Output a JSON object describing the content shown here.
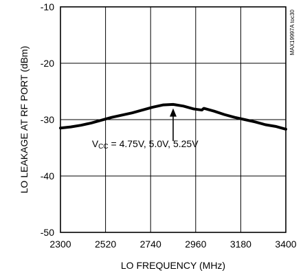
{
  "chart_data": {
    "type": "line",
    "xlabel": "LO FREQUENCY (MHz)",
    "ylabel": "LO LEAKAGE AT RF PORT (dBm)",
    "xlim": [
      2300,
      3400
    ],
    "ylim": [
      -50,
      -10
    ],
    "xticks": [
      2300,
      2520,
      2740,
      2960,
      3180,
      3400
    ],
    "yticks": [
      -10,
      -20,
      -30,
      -40,
      -50
    ],
    "xtick_labels": [
      "2300",
      "2520",
      "2740",
      "2960",
      "3180",
      "3400"
    ],
    "ytick_labels": [
      "-10",
      "-20",
      "-30",
      "-40",
      "-50"
    ],
    "grid": true,
    "chart_id": "MAX19997A toc30",
    "annotation": {
      "prefix": "V",
      "subscript": "CC",
      "suffix": " = 4.75V, 5.0V, 5.25V",
      "arrow_from": [
        2850,
        -33.8
      ],
      "arrow_to": [
        2850,
        -28.0
      ],
      "text_at": [
        2740,
        -34.9
      ]
    },
    "series": [
      {
        "x": [
          2300,
          2350,
          2400,
          2450,
          2500,
          2550,
          2600,
          2650,
          2700,
          2750,
          2800,
          2850,
          2900,
          2950,
          2990,
          3000,
          3050,
          3100,
          3150,
          3200,
          3250,
          3300,
          3350,
          3400
        ],
        "y": [
          -31.5,
          -31.3,
          -31.0,
          -30.6,
          -30.1,
          -29.6,
          -29.2,
          -28.8,
          -28.3,
          -27.8,
          -27.4,
          -27.3,
          -27.6,
          -28.1,
          -28.3,
          -28.0,
          -28.5,
          -29.1,
          -29.6,
          -30.0,
          -30.4,
          -30.9,
          -31.2,
          -31.7
        ],
        "color": "#000000"
      }
    ]
  }
}
